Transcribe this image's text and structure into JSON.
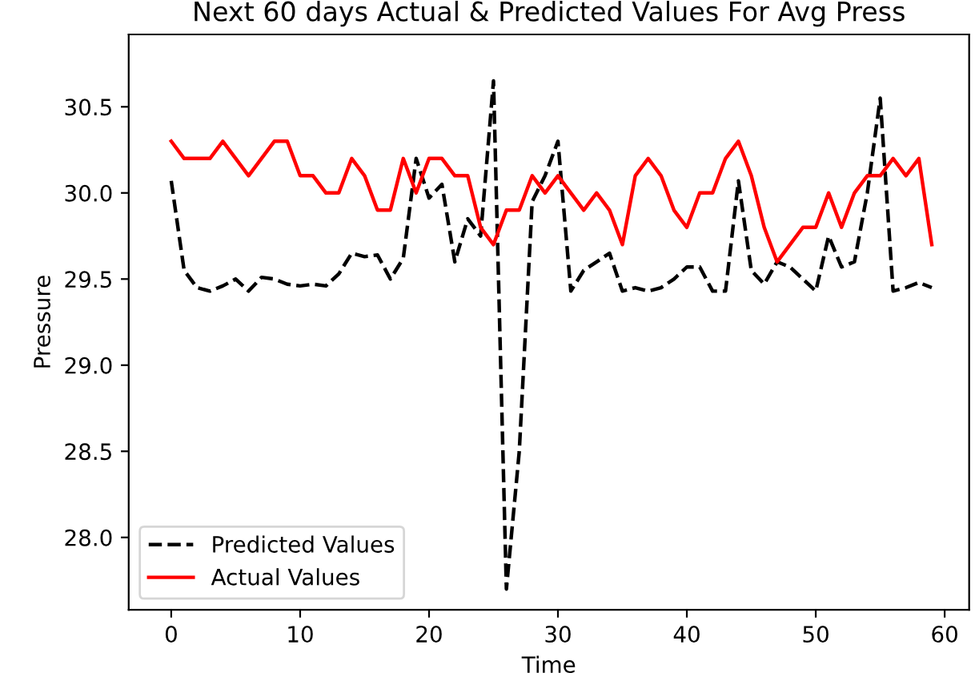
{
  "chart_data": {
    "type": "line",
    "title": "Next 60 days Actual & Predicted Values For Avg Press",
    "xlabel": "Time",
    "ylabel": "Pressure",
    "x": [
      0,
      1,
      2,
      3,
      4,
      5,
      6,
      7,
      8,
      9,
      10,
      11,
      12,
      13,
      14,
      15,
      16,
      17,
      18,
      19,
      20,
      21,
      22,
      23,
      24,
      25,
      26,
      27,
      28,
      29,
      30,
      31,
      32,
      33,
      34,
      35,
      36,
      37,
      38,
      39,
      40,
      41,
      42,
      43,
      44,
      45,
      46,
      47,
      48,
      49,
      50,
      51,
      52,
      53,
      54,
      55,
      56,
      57,
      58,
      59
    ],
    "series": [
      {
        "name": "Predicted Values",
        "color": "#000000",
        "line_style": "dashed",
        "values": [
          30.07,
          29.55,
          29.45,
          29.43,
          29.46,
          29.5,
          29.43,
          29.51,
          29.5,
          29.47,
          29.46,
          29.47,
          29.46,
          29.53,
          29.65,
          29.63,
          29.64,
          29.5,
          29.62,
          30.2,
          29.97,
          30.05,
          29.6,
          29.85,
          29.75,
          30.65,
          27.7,
          28.5,
          29.95,
          30.1,
          30.3,
          29.43,
          29.55,
          29.6,
          29.65,
          29.43,
          29.45,
          29.43,
          29.45,
          29.5,
          29.57,
          29.57,
          29.43,
          29.43,
          30.07,
          29.55,
          29.47,
          29.6,
          29.57,
          29.5,
          29.43,
          29.75,
          29.57,
          29.6,
          30.0,
          30.55,
          29.43,
          29.45,
          29.48,
          29.45
        ]
      },
      {
        "name": "Actual Values",
        "color": "#ff0000",
        "line_style": "solid",
        "values": [
          30.3,
          30.2,
          30.2,
          30.2,
          30.3,
          30.2,
          30.1,
          30.2,
          30.3,
          30.3,
          30.1,
          30.1,
          30.0,
          30.0,
          30.2,
          30.1,
          29.9,
          29.9,
          30.2,
          30.0,
          30.2,
          30.2,
          30.1,
          30.1,
          29.8,
          29.7,
          29.9,
          29.9,
          30.1,
          30.0,
          30.1,
          30.0,
          29.9,
          30.0,
          29.9,
          29.7,
          30.1,
          30.2,
          30.1,
          29.9,
          29.8,
          30.0,
          30.0,
          30.2,
          30.3,
          30.1,
          29.8,
          29.6,
          29.7,
          29.8,
          29.8,
          30.0,
          29.8,
          30.0,
          30.1,
          30.1,
          30.2,
          30.1,
          30.2,
          29.7
        ]
      }
    ],
    "xlim": [
      -3.3,
      61.9
    ],
    "ylim": [
      27.58,
      30.92
    ],
    "xticks": [
      0,
      10,
      20,
      30,
      40,
      50,
      60
    ],
    "yticks": [
      {
        "value": 28,
        "label": "28.0"
      },
      28.5,
      {
        "value": 29,
        "label": "29.0"
      },
      29.5,
      {
        "value": 30,
        "label": "30.0"
      },
      30.5
    ],
    "legend": "bottom left",
    "grid": false,
    "marker": "none"
  }
}
